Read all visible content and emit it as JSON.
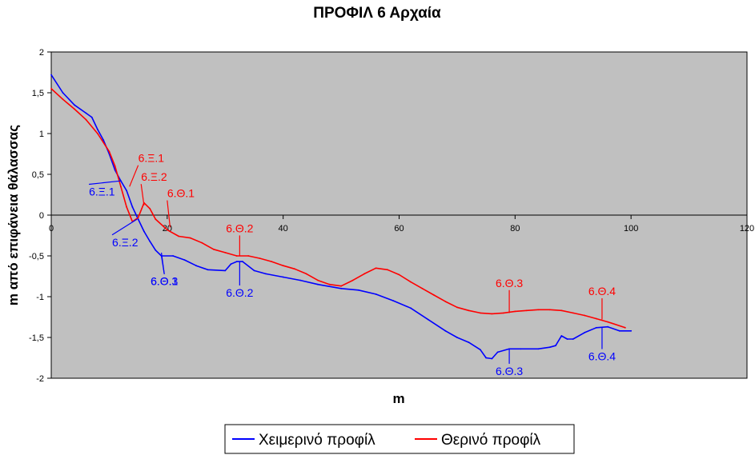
{
  "chart_data": {
    "type": "line",
    "title": "ΠΡΟΦΙΛ  6  Αρχαία",
    "xlabel": "m",
    "ylabel": "m από επιφάνεια θάλασσας",
    "xlim": [
      0,
      120
    ],
    "ylim": [
      -2,
      2
    ],
    "x_ticks": [
      0,
      20,
      40,
      60,
      80,
      100,
      120
    ],
    "y_ticks": [
      2,
      1.5,
      1,
      0.5,
      0,
      -0.5,
      -1,
      -1.5,
      -2
    ],
    "x_tick_labels": [
      "0",
      "20",
      "40",
      "60",
      "80",
      "100",
      "120"
    ],
    "y_tick_labels": [
      "2",
      "1,5",
      "1",
      "0,5",
      "0",
      "-0,5",
      "-1",
      "-1,5",
      "-2"
    ],
    "plot_background": "#c0c0c0",
    "grid": false,
    "legend_position": "bottom-center",
    "series": [
      {
        "name": "Χειμερινό προφίλ",
        "color": "#0000ff",
        "points": [
          [
            0,
            1.72
          ],
          [
            2,
            1.5
          ],
          [
            4,
            1.35
          ],
          [
            6,
            1.25
          ],
          [
            7,
            1.2
          ],
          [
            8,
            1.05
          ],
          [
            9,
            0.92
          ],
          [
            10,
            0.75
          ],
          [
            11,
            0.55
          ],
          [
            12,
            0.42
          ],
          [
            13,
            0.3
          ],
          [
            14,
            0.1
          ],
          [
            15,
            -0.05
          ],
          [
            16,
            -0.2
          ],
          [
            17,
            -0.32
          ],
          [
            18,
            -0.43
          ],
          [
            19,
            -0.5
          ],
          [
            21,
            -0.5
          ],
          [
            23,
            -0.55
          ],
          [
            25,
            -0.62
          ],
          [
            27,
            -0.67
          ],
          [
            30,
            -0.68
          ],
          [
            31,
            -0.6
          ],
          [
            32,
            -0.57
          ],
          [
            33,
            -0.57
          ],
          [
            35,
            -0.68
          ],
          [
            37,
            -0.72
          ],
          [
            40,
            -0.76
          ],
          [
            43,
            -0.8
          ],
          [
            46,
            -0.85
          ],
          [
            50,
            -0.9
          ],
          [
            53,
            -0.92
          ],
          [
            56,
            -0.97
          ],
          [
            59,
            -1.05
          ],
          [
            62,
            -1.14
          ],
          [
            65,
            -1.28
          ],
          [
            68,
            -1.42
          ],
          [
            70,
            -1.5
          ],
          [
            72,
            -1.56
          ],
          [
            74,
            -1.65
          ],
          [
            75,
            -1.75
          ],
          [
            76,
            -1.76
          ],
          [
            77,
            -1.68
          ],
          [
            79,
            -1.64
          ],
          [
            81,
            -1.64
          ],
          [
            84,
            -1.64
          ],
          [
            86,
            -1.62
          ],
          [
            87,
            -1.6
          ],
          [
            88,
            -1.48
          ],
          [
            89,
            -1.52
          ],
          [
            90,
            -1.52
          ],
          [
            92,
            -1.44
          ],
          [
            94,
            -1.38
          ],
          [
            96,
            -1.37
          ],
          [
            98,
            -1.42
          ],
          [
            100,
            -1.42
          ]
        ]
      },
      {
        "name": "Θερινό προφίλ",
        "color": "#ff0000",
        "points": [
          [
            0,
            1.55
          ],
          [
            2,
            1.42
          ],
          [
            4,
            1.3
          ],
          [
            6,
            1.17
          ],
          [
            8,
            1.0
          ],
          [
            10,
            0.78
          ],
          [
            11,
            0.6
          ],
          [
            12,
            0.35
          ],
          [
            13,
            0.1
          ],
          [
            14,
            -0.08
          ],
          [
            15,
            -0.03
          ],
          [
            16,
            0.15
          ],
          [
            17,
            0.08
          ],
          [
            18,
            -0.05
          ],
          [
            20,
            -0.18
          ],
          [
            22,
            -0.26
          ],
          [
            24,
            -0.28
          ],
          [
            26,
            -0.34
          ],
          [
            28,
            -0.42
          ],
          [
            30,
            -0.46
          ],
          [
            32,
            -0.5
          ],
          [
            34,
            -0.5
          ],
          [
            36,
            -0.53
          ],
          [
            38,
            -0.57
          ],
          [
            40,
            -0.62
          ],
          [
            42,
            -0.66
          ],
          [
            44,
            -0.72
          ],
          [
            46,
            -0.8
          ],
          [
            48,
            -0.85
          ],
          [
            50,
            -0.87
          ],
          [
            52,
            -0.8
          ],
          [
            54,
            -0.72
          ],
          [
            56,
            -0.65
          ],
          [
            58,
            -0.67
          ],
          [
            60,
            -0.73
          ],
          [
            62,
            -0.82
          ],
          [
            64,
            -0.9
          ],
          [
            66,
            -0.98
          ],
          [
            68,
            -1.06
          ],
          [
            70,
            -1.13
          ],
          [
            72,
            -1.17
          ],
          [
            74,
            -1.2
          ],
          [
            76,
            -1.21
          ],
          [
            78,
            -1.2
          ],
          [
            80,
            -1.18
          ],
          [
            82,
            -1.17
          ],
          [
            84,
            -1.16
          ],
          [
            86,
            -1.16
          ],
          [
            88,
            -1.17
          ],
          [
            90,
            -1.2
          ],
          [
            92,
            -1.23
          ],
          [
            94,
            -1.27
          ],
          [
            96,
            -1.31
          ],
          [
            99,
            -1.38
          ]
        ]
      }
    ],
    "annotations": [
      {
        "label": "6.Ξ.1",
        "color": "#ff0000",
        "point": [
          13.5,
          0.35
        ],
        "text": [
          15,
          0.65
        ],
        "anchor": "start"
      },
      {
        "label": "6.Ξ.2",
        "color": "#ff0000",
        "point": [
          16,
          0.12
        ],
        "text": [
          15.5,
          0.42
        ],
        "anchor": "start"
      },
      {
        "label": "6.Θ.1",
        "color": "#ff0000",
        "point": [
          20.5,
          -0.15
        ],
        "text": [
          20,
          0.22
        ],
        "anchor": "start"
      },
      {
        "label": "6.Θ.2",
        "color": "#ff0000",
        "point": [
          32.5,
          -0.5
        ],
        "text": [
          32.5,
          -0.21
        ],
        "anchor": "middle"
      },
      {
        "label": "6.Θ.3",
        "color": "#ff0000",
        "point": [
          79,
          -1.2
        ],
        "text": [
          79,
          -0.88
        ],
        "anchor": "middle"
      },
      {
        "label": "6.Θ.4",
        "color": "#ff0000",
        "point": [
          95,
          -1.28
        ],
        "text": [
          95,
          -0.98
        ],
        "anchor": "middle"
      },
      {
        "label": "6.Ξ.1",
        "color": "#0000ff",
        "point": [
          12,
          0.42
        ],
        "text": [
          6.5,
          0.24
        ],
        "anchor": "start"
      },
      {
        "label": "6.Ξ.2",
        "color": "#0000ff",
        "point": [
          14.8,
          -0.05
        ],
        "text": [
          10.5,
          -0.38
        ],
        "anchor": "start"
      },
      {
        "label": "6.Θ.1",
        "color": "#0000ff",
        "point": [
          19,
          -0.46
        ],
        "text": [
          19.5,
          -0.86
        ],
        "anchor": "middle"
      },
      {
        "label": "6.Θ.3",
        "color": "#0000ff",
        "point": [
          19,
          -0.5
        ],
        "text": [
          19.5,
          -0.86
        ],
        "anchor": "middle"
      },
      {
        "label": "6.Θ.2",
        "color": "#0000ff",
        "point": [
          32.5,
          -0.57
        ],
        "text": [
          32.5,
          -1.0
        ],
        "anchor": "middle"
      },
      {
        "label": "6.Θ.3",
        "color": "#0000ff",
        "point": [
          79,
          -1.64
        ],
        "text": [
          79,
          -1.96
        ],
        "anchor": "middle"
      },
      {
        "label": "6.Θ.4",
        "color": "#0000ff",
        "point": [
          95,
          -1.38
        ],
        "text": [
          95,
          -1.78
        ],
        "anchor": "middle"
      }
    ]
  }
}
